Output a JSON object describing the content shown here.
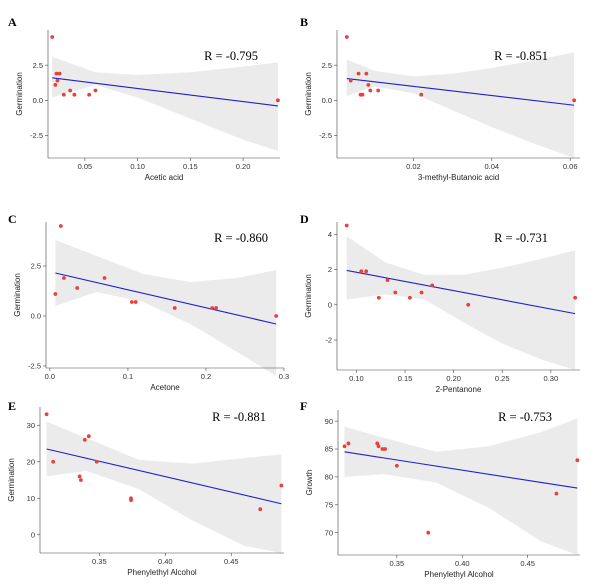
{
  "chart_data": [
    {
      "panel": "A",
      "type": "scatter",
      "annotation": "R = -0.795",
      "xlabel": "Acetic acid",
      "ylabel": "Germination",
      "xlim": [
        0.015,
        0.235
      ],
      "ylim": [
        -4.1,
        5.0
      ],
      "xticks": [
        0.05,
        0.1,
        0.15,
        0.2
      ],
      "xtick_labels": [
        "0.05",
        "0.10",
        "0.15",
        "0.20"
      ],
      "yticks": [
        -2.5,
        0.0,
        2.5
      ],
      "ytick_labels": [
        "-2.5",
        "0.0",
        "2.5"
      ],
      "points": [
        [
          0.019,
          4.5
        ],
        [
          0.022,
          1.1
        ],
        [
          0.023,
          1.9
        ],
        [
          0.024,
          1.4
        ],
        [
          0.026,
          1.9
        ],
        [
          0.03,
          0.4
        ],
        [
          0.036,
          0.7
        ],
        [
          0.04,
          0.4
        ],
        [
          0.054,
          0.4
        ],
        [
          0.06,
          0.7
        ],
        [
          0.233,
          0.0
        ]
      ],
      "fit": {
        "x": [
          0.019,
          0.233
        ],
        "y": [
          1.6,
          -0.4
        ]
      },
      "band": {
        "x": [
          0.019,
          0.06,
          0.1,
          0.15,
          0.2,
          0.233
        ],
        "upper": [
          3.1,
          2.0,
          1.8,
          2.0,
          2.4,
          2.7
        ],
        "lower": [
          0.2,
          1.1,
          0.2,
          -1.3,
          -2.8,
          -3.6
        ]
      },
      "colors": {
        "points": "#e8413c",
        "fit": "#1f1fcf",
        "band": "#ebebeb"
      }
    },
    {
      "panel": "B",
      "type": "scatter",
      "annotation": "R = -0.851",
      "xlabel": "3-methyl-Butanoic acid",
      "ylabel": "Germination",
      "xlim": [
        0.0005,
        0.0625
      ],
      "ylim": [
        -4.1,
        5.0
      ],
      "xticks": [
        0.02,
        0.04,
        0.06
      ],
      "xtick_labels": [
        "0.02",
        "0.04",
        "0.06"
      ],
      "yticks": [
        -2.5,
        0.0,
        2.5
      ],
      "ytick_labels": [
        "-2.5",
        "0.0",
        "2.5"
      ],
      "points": [
        [
          0.003,
          4.5
        ],
        [
          0.004,
          1.4
        ],
        [
          0.006,
          1.9
        ],
        [
          0.0065,
          0.4
        ],
        [
          0.007,
          0.4
        ],
        [
          0.008,
          1.9
        ],
        [
          0.0085,
          1.1
        ],
        [
          0.009,
          0.7
        ],
        [
          0.011,
          0.7
        ],
        [
          0.022,
          0.4
        ],
        [
          0.061,
          0.0
        ]
      ],
      "fit": {
        "x": [
          0.003,
          0.061
        ],
        "y": [
          1.55,
          -0.35
        ]
      },
      "band": {
        "x": [
          0.003,
          0.01,
          0.02,
          0.03,
          0.04,
          0.05,
          0.061
        ],
        "upper": [
          2.9,
          2.1,
          1.7,
          1.9,
          2.3,
          2.8,
          3.4
        ],
        "lower": [
          0.3,
          1.0,
          0.5,
          -0.7,
          -1.9,
          -3.0,
          -4.1
        ]
      },
      "colors": {
        "points": "#e8413c",
        "fit": "#1f1fcf",
        "band": "#ebebeb"
      }
    },
    {
      "panel": "C",
      "type": "scatter",
      "annotation": "R = -0.860",
      "xlabel": "Acetone",
      "ylabel": "Germination",
      "xlim": [
        -0.005,
        0.3
      ],
      "ylim": [
        -2.6,
        4.7
      ],
      "xticks": [
        0.0,
        0.1,
        0.2,
        0.3
      ],
      "xtick_labels": [
        "0.0",
        "0.1",
        "0.2",
        "0.3"
      ],
      "yticks": [
        -2.5,
        0.0,
        2.5
      ],
      "ytick_labels": [
        "-2.5",
        "0.0",
        "2.5"
      ],
      "points": [
        [
          0.007,
          1.1
        ],
        [
          0.014,
          4.5
        ],
        [
          0.018,
          1.9
        ],
        [
          0.035,
          1.4
        ],
        [
          0.07,
          1.9
        ],
        [
          0.105,
          0.7
        ],
        [
          0.11,
          0.7
        ],
        [
          0.16,
          0.4
        ],
        [
          0.208,
          0.4
        ],
        [
          0.213,
          0.4
        ],
        [
          0.29,
          0.0
        ]
      ],
      "fit": {
        "x": [
          0.007,
          0.29
        ],
        "y": [
          2.15,
          -0.4
        ]
      },
      "band": {
        "x": [
          0.007,
          0.06,
          0.12,
          0.18,
          0.24,
          0.29
        ],
        "upper": [
          3.8,
          3.0,
          2.1,
          1.7,
          1.9,
          2.3
        ],
        "lower": [
          0.5,
          1.2,
          0.7,
          -0.4,
          -1.8,
          -3.0
        ]
      },
      "colors": {
        "points": "#e8413c",
        "fit": "#1f1fcf",
        "band": "#ebebeb"
      }
    },
    {
      "panel": "D",
      "type": "scatter",
      "annotation": "R = -0.731",
      "xlabel": "2-Pentanone",
      "ylabel": "Germination",
      "xlim": [
        0.08,
        0.33
      ],
      "ylim": [
        -3.7,
        4.7
      ],
      "xticks": [
        0.1,
        0.15,
        0.2,
        0.25,
        0.3
      ],
      "xtick_labels": [
        "0.10",
        "0.15",
        "0.20",
        "0.25",
        "0.30"
      ],
      "yticks": [
        -2,
        0,
        2,
        4
      ],
      "ytick_labels": [
        "-2",
        "0",
        "2",
        "4"
      ],
      "points": [
        [
          0.09,
          4.5
        ],
        [
          0.105,
          1.9
        ],
        [
          0.11,
          1.9
        ],
        [
          0.123,
          0.4
        ],
        [
          0.132,
          1.4
        ],
        [
          0.14,
          0.7
        ],
        [
          0.155,
          0.4
        ],
        [
          0.167,
          0.7
        ],
        [
          0.178,
          1.1
        ],
        [
          0.215,
          0.0
        ],
        [
          0.325,
          0.4
        ]
      ],
      "fit": {
        "x": [
          0.09,
          0.325
        ],
        "y": [
          1.95,
          -0.5
        ]
      },
      "band": {
        "x": [
          0.09,
          0.13,
          0.17,
          0.21,
          0.25,
          0.29,
          0.325
        ],
        "upper": [
          3.9,
          2.4,
          1.7,
          1.7,
          2.1,
          2.6,
          3.1
        ],
        "lower": [
          0.3,
          0.6,
          0.3,
          -1.0,
          -2.2,
          -3.1,
          -3.7
        ]
      },
      "colors": {
        "points": "#e8413c",
        "fit": "#1f1fcf",
        "band": "#ebebeb"
      }
    },
    {
      "panel": "E",
      "type": "scatter",
      "annotation": "R = -0.881",
      "xlabel": "Phenylethyl Alcohol",
      "ylabel": "Germination",
      "xlim": [
        0.305,
        0.49
      ],
      "ylim": [
        -5,
        35
      ],
      "xticks": [
        0.35,
        0.4,
        0.45
      ],
      "xtick_labels": [
        "0.35",
        "0.40",
        "0.45"
      ],
      "yticks": [
        0,
        10,
        20,
        30
      ],
      "ytick_labels": [
        "0",
        "10",
        "20",
        "30"
      ],
      "points": [
        [
          0.31,
          33.0
        ],
        [
          0.315,
          20.0
        ],
        [
          0.335,
          16.0
        ],
        [
          0.336,
          15.0
        ],
        [
          0.339,
          26.0
        ],
        [
          0.342,
          27.0
        ],
        [
          0.348,
          20.0
        ],
        [
          0.374,
          9.5
        ],
        [
          0.374,
          10.0
        ],
        [
          0.472,
          7.0
        ],
        [
          0.488,
          13.5
        ]
      ],
      "fit": {
        "x": [
          0.31,
          0.488
        ],
        "y": [
          23.5,
          8.5
        ]
      },
      "band": {
        "x": [
          0.31,
          0.34,
          0.38,
          0.42,
          0.46,
          0.488
        ],
        "upper": [
          31.0,
          26.5,
          20.5,
          19.5,
          21.0,
          22.0
        ],
        "lower": [
          16.0,
          17.5,
          12.5,
          4.0,
          -3.0,
          -5.0
        ]
      },
      "colors": {
        "points": "#e8413c",
        "fit": "#1f1fcf",
        "band": "#ebebeb"
      }
    },
    {
      "panel": "F",
      "type": "scatter",
      "annotation": "R = -0.753",
      "xlabel": "Phenylethyl Alcohol",
      "ylabel": "Growth",
      "xlim": [
        0.305,
        0.49
      ],
      "ylim": [
        66,
        92
      ],
      "xticks": [
        0.35,
        0.4,
        0.45
      ],
      "xtick_labels": [
        "0.35",
        "0.40",
        "0.45"
      ],
      "yticks": [
        70,
        75,
        80,
        85,
        90
      ],
      "ytick_labels": [
        "70",
        "75",
        "80",
        "85",
        "90"
      ],
      "points": [
        [
          0.31,
          85.5
        ],
        [
          0.313,
          86.0
        ],
        [
          0.335,
          86.0
        ],
        [
          0.336,
          85.5
        ],
        [
          0.339,
          85.0
        ],
        [
          0.341,
          85.0
        ],
        [
          0.35,
          82.0
        ],
        [
          0.374,
          70.0
        ],
        [
          0.472,
          77.0
        ],
        [
          0.488,
          83.0
        ]
      ],
      "fit": {
        "x": [
          0.31,
          0.488
        ],
        "y": [
          84.5,
          78.0
        ]
      },
      "band": {
        "x": [
          0.31,
          0.34,
          0.38,
          0.42,
          0.46,
          0.488
        ],
        "upper": [
          89.0,
          87.0,
          84.5,
          85.5,
          88.0,
          90.5
        ],
        "lower": [
          80.0,
          80.5,
          79.0,
          74.5,
          68.5,
          66.0
        ]
      },
      "colors": {
        "points": "#e8413c",
        "fit": "#1f1fcf",
        "band": "#ebebeb"
      }
    }
  ]
}
